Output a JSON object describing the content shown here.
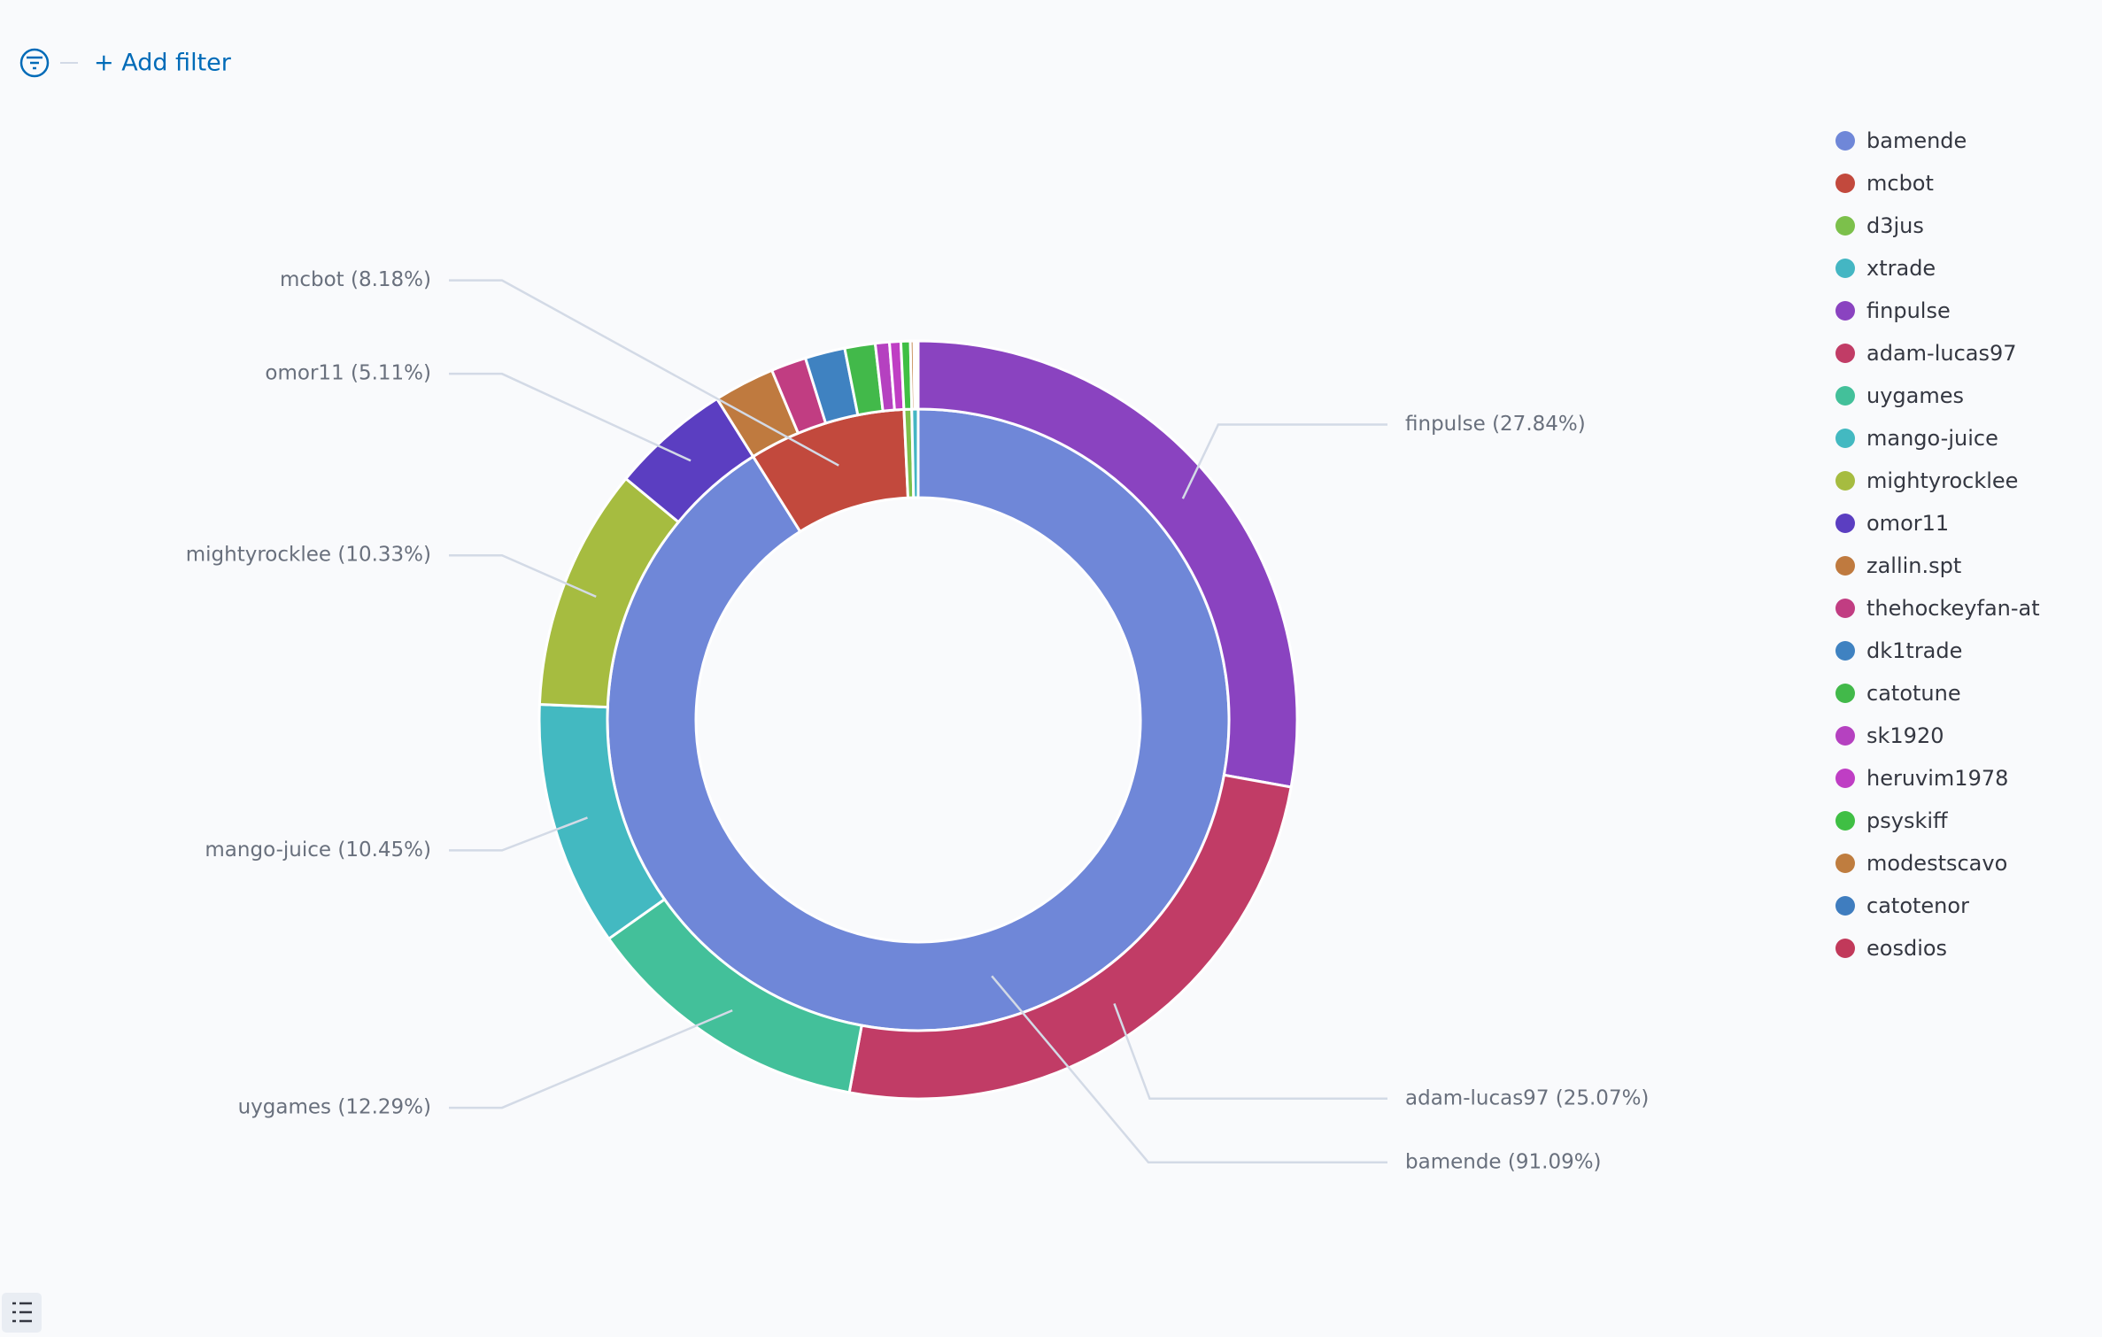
{
  "filter_bar": {
    "add_filter": "+ Add filter"
  },
  "chart_data": {
    "type": "nested-donut",
    "rings": [
      {
        "categories": [
          "bamende",
          "mcbot",
          "d3jus",
          "xtrade"
        ],
        "values": [
          91.09,
          8.18,
          0.4,
          0.33
        ],
        "value_labels": [
          "bamende (91.09%)",
          "mcbot (8.18%)",
          null,
          null
        ],
        "colors": [
          "#6f87d8",
          "#c2493d",
          "#7cc04b",
          "#44b6c3"
        ]
      },
      {
        "categories": [
          "finpulse",
          "adam-lucas97",
          "uygames",
          "mango-juice",
          "mightyrocklee",
          "omor11",
          "zallin.spt",
          "thehockeyfan-at",
          "dk1trade",
          "catotune",
          "sk1920",
          "heruvim1978",
          "psyskiff",
          "modestscavo",
          "catotenor",
          "eosdios"
        ],
        "values": [
          27.84,
          25.07,
          12.29,
          10.45,
          10.33,
          5.11,
          2.6,
          1.5,
          1.7,
          1.3,
          0.6,
          0.48,
          0.4,
          0.15,
          0.1,
          0.08
        ],
        "value_labels": [
          "finpulse (27.84%)",
          "adam-lucas97 (25.07%)",
          "uygames (12.29%)",
          "mango-juice (10.45%)",
          "mightyrocklee (10.33%)",
          "omor11 (5.11%)",
          null,
          null,
          null,
          null,
          null,
          null,
          null,
          null,
          null,
          null
        ],
        "colors": [
          "#8a43c0",
          "#c13c66",
          "#43c09a",
          "#43b9c1",
          "#a6bc40",
          "#5b3ec1",
          "#bf7a3f",
          "#c13d82",
          "#3f82c1",
          "#42b94a",
          "#b541c0",
          "#bf3ec4",
          "#3fbf44",
          "#bf7d3f",
          "#3f7dbf",
          "#c1395a"
        ]
      }
    ]
  }
}
